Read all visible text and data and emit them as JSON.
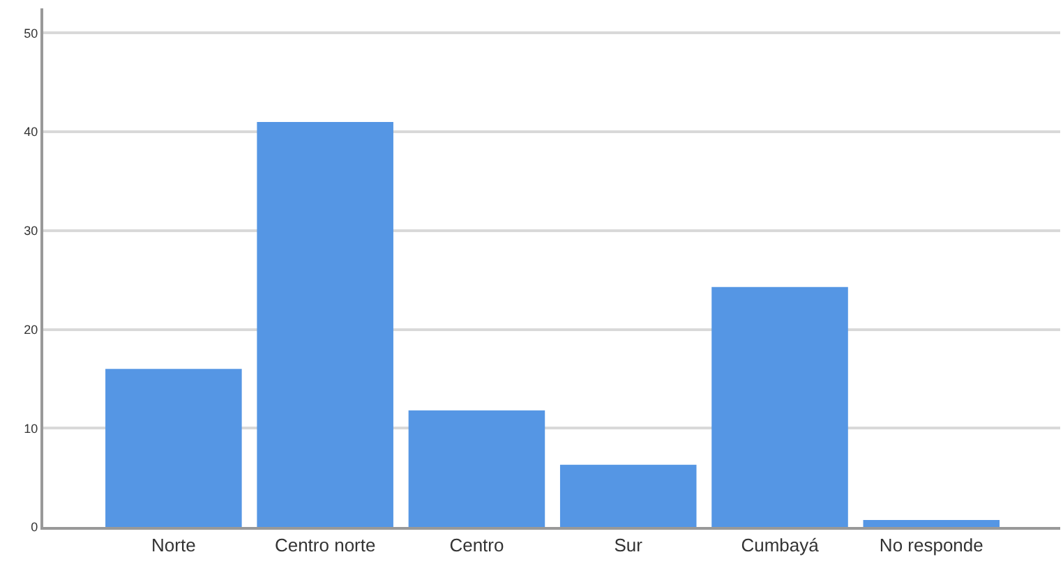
{
  "chart_data": {
    "type": "bar",
    "categories": [
      "Norte",
      "Centro norte",
      "Centro",
      "Sur",
      "Cumbayá",
      "No responde"
    ],
    "values": [
      16,
      41,
      11.8,
      6.3,
      24.3,
      0.7
    ],
    "color": "#5596e4",
    "ylim": [
      0,
      52.5
    ],
    "yticks": [
      0,
      10,
      20,
      30,
      40,
      50
    ],
    "grid": "y",
    "legend": false
  }
}
